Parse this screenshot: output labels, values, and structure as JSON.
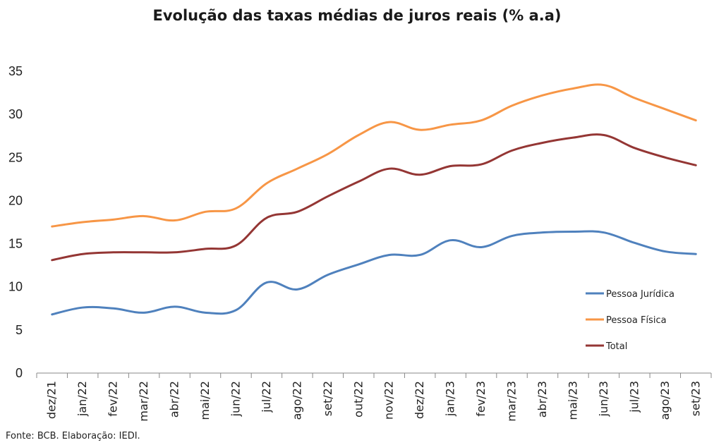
{
  "chart_data": {
    "type": "line",
    "title": "Evolução das taxas médias de juros reais (% a.a)",
    "xlabel": "",
    "ylabel": "",
    "ylim": [
      0,
      35
    ],
    "yticks": [
      0,
      5,
      10,
      15,
      20,
      25,
      30,
      35
    ],
    "grid": false,
    "legend_position": "right",
    "categories": [
      "dez/21",
      "jan/22",
      "fev/22",
      "mar/22",
      "abr/22",
      "mai/22",
      "jun/22",
      "jul/22",
      "ago/22",
      "set/22",
      "out/22",
      "nov/22",
      "dez/22",
      "jan/23",
      "fev/23",
      "mar/23",
      "abr/23",
      "mai/23",
      "jun/23",
      "jul/23",
      "ago/23",
      "set/23"
    ],
    "series": [
      {
        "name": "Pessoa Jurídica",
        "color": "#4f81bd",
        "values": [
          6.8,
          7.6,
          7.5,
          7.0,
          7.7,
          7.0,
          7.3,
          10.5,
          9.7,
          11.4,
          12.6,
          13.7,
          13.7,
          15.4,
          14.6,
          15.9,
          16.3,
          16.4,
          16.3,
          15.1,
          14.1,
          13.8
        ]
      },
      {
        "name": "Pessoa Física",
        "color": "#f79646",
        "values": [
          17.0,
          17.5,
          17.8,
          18.2,
          17.7,
          18.7,
          19.1,
          22.0,
          23.7,
          25.4,
          27.6,
          29.1,
          28.2,
          28.8,
          29.3,
          31.0,
          32.2,
          33.0,
          33.4,
          31.9,
          30.6,
          29.3
        ]
      },
      {
        "name": "Total",
        "color": "#943634",
        "values": [
          13.1,
          13.8,
          14.0,
          14.0,
          14.0,
          14.4,
          14.8,
          18.0,
          18.7,
          20.5,
          22.2,
          23.7,
          23.0,
          24.0,
          24.2,
          25.8,
          26.7,
          27.3,
          27.6,
          26.1,
          25.0,
          24.1
        ]
      }
    ]
  },
  "source_note": "Fonte: BCB. Elaboração: IEDI."
}
